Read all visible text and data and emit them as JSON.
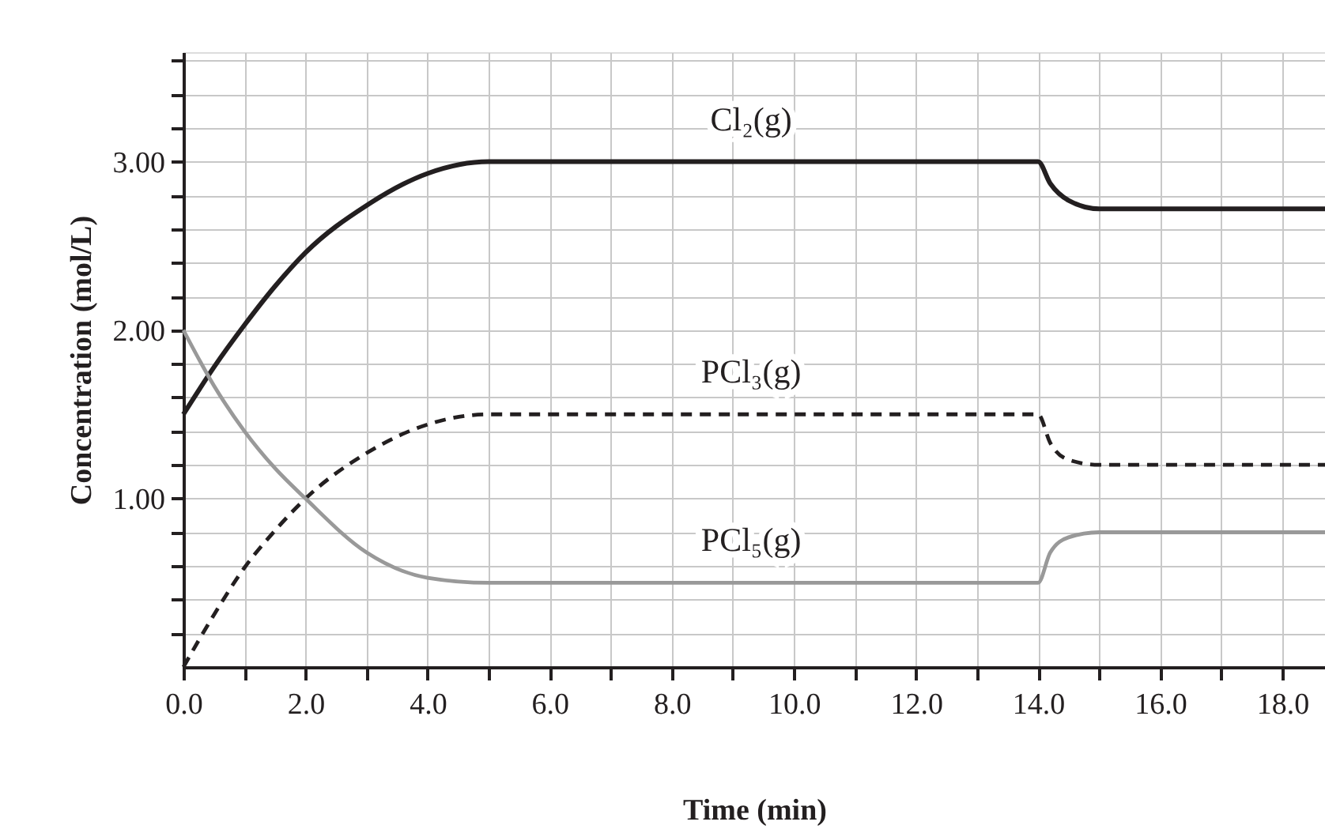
{
  "chart_data": {
    "type": "line",
    "xlabel": "Time (min)",
    "ylabel": "Concentration (mol/L)",
    "x": [
      0,
      0.5,
      1,
      1.5,
      2,
      3,
      4,
      5,
      14,
      14.2,
      14.5,
      15,
      18.7
    ],
    "series": [
      {
        "name": "Cl₂(g)",
        "color": "#231f20",
        "line_style": "solid",
        "values": [
          1.5,
          1.78,
          2.03,
          2.26,
          2.46,
          2.74,
          2.93,
          3.0,
          3.0,
          2.87,
          2.77,
          2.72,
          2.72
        ]
      },
      {
        "name": "PCl₃(g)",
        "color": "#231f20",
        "line_style": "dashed",
        "values": [
          0,
          0.31,
          0.59,
          0.81,
          1.0,
          1.27,
          1.44,
          1.5,
          1.5,
          1.33,
          1.23,
          1.2,
          1.2
        ]
      },
      {
        "name": "PCl₅(g)",
        "color": "#999999",
        "line_style": "solid",
        "values": [
          2.0,
          1.67,
          1.4,
          1.18,
          1.0,
          0.68,
          0.53,
          0.5,
          0.5,
          0.68,
          0.77,
          0.8,
          0.8
        ]
      }
    ],
    "xlim": [
      0,
      18.7
    ],
    "ylim": [
      0,
      3.65
    ],
    "xticks": [
      {
        "value": 0,
        "label": "0.0"
      },
      {
        "value": 1,
        "label": null
      },
      {
        "value": 2,
        "label": "2.0"
      },
      {
        "value": 3,
        "label": null
      },
      {
        "value": 4,
        "label": "4.0"
      },
      {
        "value": 5,
        "label": null
      },
      {
        "value": 6,
        "label": "6.0"
      },
      {
        "value": 7,
        "label": null
      },
      {
        "value": 8,
        "label": "8.0"
      },
      {
        "value": 9,
        "label": null
      },
      {
        "value": 10,
        "label": "10.0"
      },
      {
        "value": 11,
        "label": null
      },
      {
        "value": 12,
        "label": "12.0"
      },
      {
        "value": 13,
        "label": null
      },
      {
        "value": 14,
        "label": "14.0"
      },
      {
        "value": 15,
        "label": null
      },
      {
        "value": 16,
        "label": "16.0"
      },
      {
        "value": 17,
        "label": null
      },
      {
        "value": 18,
        "label": "18.0"
      }
    ],
    "yticks": [
      {
        "value": 0.2,
        "label": null
      },
      {
        "value": 0.4,
        "label": null
      },
      {
        "value": 0.6,
        "label": null
      },
      {
        "value": 0.8,
        "label": null
      },
      {
        "value": 1.0,
        "label": "1.00"
      },
      {
        "value": 1.2,
        "label": null
      },
      {
        "value": 1.4,
        "label": null
      },
      {
        "value": 1.6,
        "label": null
      },
      {
        "value": 1.8,
        "label": null
      },
      {
        "value": 2.0,
        "label": "2.00"
      },
      {
        "value": 2.2,
        "label": null
      },
      {
        "value": 2.4,
        "label": null
      },
      {
        "value": 2.6,
        "label": null
      },
      {
        "value": 2.8,
        "label": null
      },
      {
        "value": 3.0,
        "label": "3.00"
      },
      {
        "value": 3.2,
        "label": null
      },
      {
        "value": 3.4,
        "label": null
      },
      {
        "value": 3.6,
        "label": null
      }
    ],
    "grid": true,
    "marker": "none"
  }
}
